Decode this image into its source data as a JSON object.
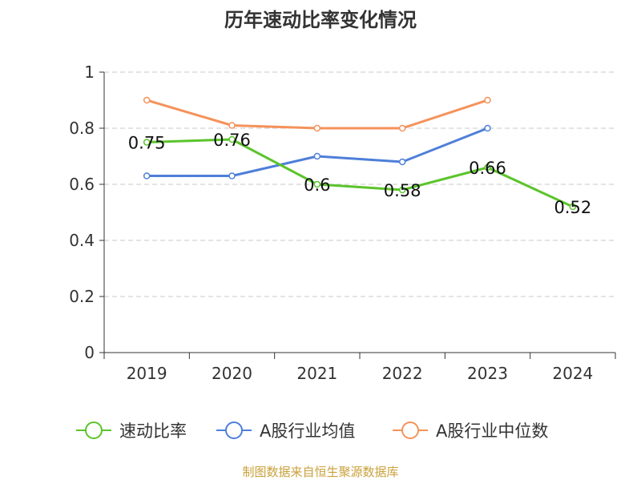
{
  "chart_data": {
    "type": "line",
    "title": "历年速动比率变化情况",
    "categories": [
      "2019",
      "2020",
      "2021",
      "2022",
      "2023",
      "2024"
    ],
    "ylim": [
      0,
      1
    ],
    "yticks": [
      "0",
      "0.2",
      "0.4",
      "0.6",
      "0.8",
      "1"
    ],
    "ytick_values": [
      0,
      0.2,
      0.4,
      0.6,
      0.8,
      1
    ],
    "grid": true,
    "legend_position": "bottom",
    "series": [
      {
        "name": "速动比率",
        "color": "#5bc42b",
        "values": [
          0.75,
          0.76,
          0.6,
          0.58,
          0.66,
          0.52
        ],
        "labels": [
          "0.75",
          "0.76",
          "0.6",
          "0.58",
          "0.66",
          "0.52"
        ]
      },
      {
        "name": "A股行业均值",
        "color": "#4e7fd9",
        "values": [
          0.63,
          0.63,
          0.7,
          0.68,
          0.8,
          null
        ],
        "labels": null
      },
      {
        "name": "A股行业中位数",
        "color": "#f5925a",
        "values": [
          0.9,
          0.81,
          0.8,
          0.8,
          0.9,
          null
        ],
        "labels": null
      }
    ]
  },
  "source_text": "制图数据来自恒生聚源数据库"
}
